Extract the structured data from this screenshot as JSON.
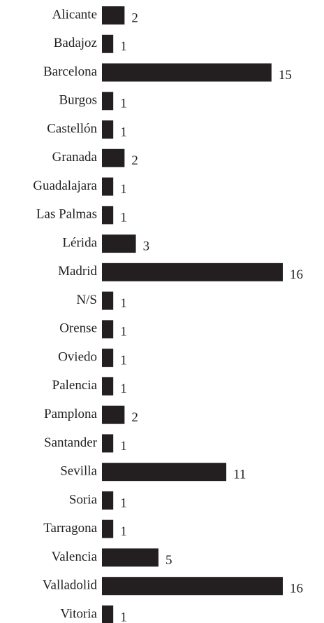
{
  "chart_data": {
    "type": "bar",
    "orientation": "horizontal",
    "categories": [
      "Alicante",
      "Badajoz",
      "Barcelona",
      "Burgos",
      "Castellón",
      "Granada",
      "Guadalajara",
      "Las Palmas",
      "Lérida",
      "Madrid",
      "N/S",
      "Orense",
      "Oviedo",
      "Palencia",
      "Pamplona",
      "Santander",
      "Sevilla",
      "Soria",
      "Tarragona",
      "Valencia",
      "Valladolid",
      "Vitoria"
    ],
    "values": [
      2,
      1,
      15,
      1,
      1,
      2,
      1,
      1,
      3,
      16,
      1,
      1,
      1,
      1,
      2,
      1,
      11,
      1,
      1,
      5,
      16,
      1
    ],
    "color": "#231f20"
  }
}
